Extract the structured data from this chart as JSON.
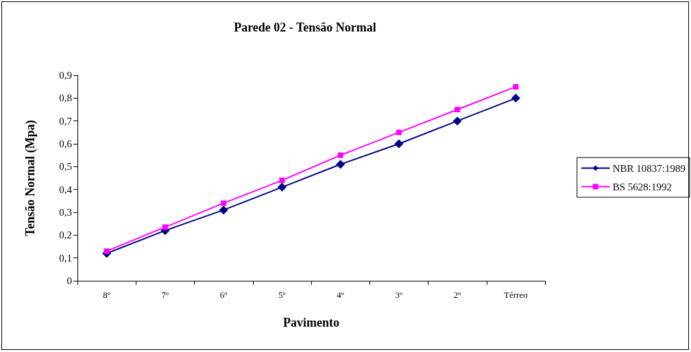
{
  "chart_data": {
    "type": "line",
    "title": "Parede 02 - Tensão Normal",
    "xlabel": "Pavimento",
    "ylabel": "Tensão Normal (Mpa)",
    "categories": [
      "8º",
      "7º",
      "6º",
      "5º",
      "4º",
      "3º",
      "2º",
      "Térreo"
    ],
    "series": [
      {
        "name": "NBR 10837:1989",
        "color": "#000080",
        "marker": "diamond",
        "values": [
          0.12,
          0.22,
          0.31,
          0.41,
          0.51,
          0.6,
          0.7,
          0.8
        ]
      },
      {
        "name": "BS 5628:1992",
        "color": "#ff00ff",
        "marker": "square",
        "values": [
          0.13,
          0.235,
          0.34,
          0.44,
          0.55,
          0.65,
          0.75,
          0.85
        ]
      }
    ],
    "ylim": [
      0,
      0.9
    ],
    "yticks": [
      0,
      {
        "value": 0.1,
        "label": "0,1"
      },
      {
        "value": 0.2,
        "label": "0,2"
      },
      {
        "value": 0.3,
        "label": "0,3"
      },
      {
        "value": 0.4,
        "label": "0,4"
      },
      {
        "value": 0.5,
        "label": "0,5"
      },
      {
        "value": 0.6,
        "label": "0,6"
      },
      {
        "value": 0.7,
        "label": "0,7"
      },
      {
        "value": 0.8,
        "label": "0,8"
      },
      {
        "value": 0.9,
        "label": "0,9"
      }
    ],
    "grid": false,
    "legend": "right",
    "line_style": "solid"
  }
}
